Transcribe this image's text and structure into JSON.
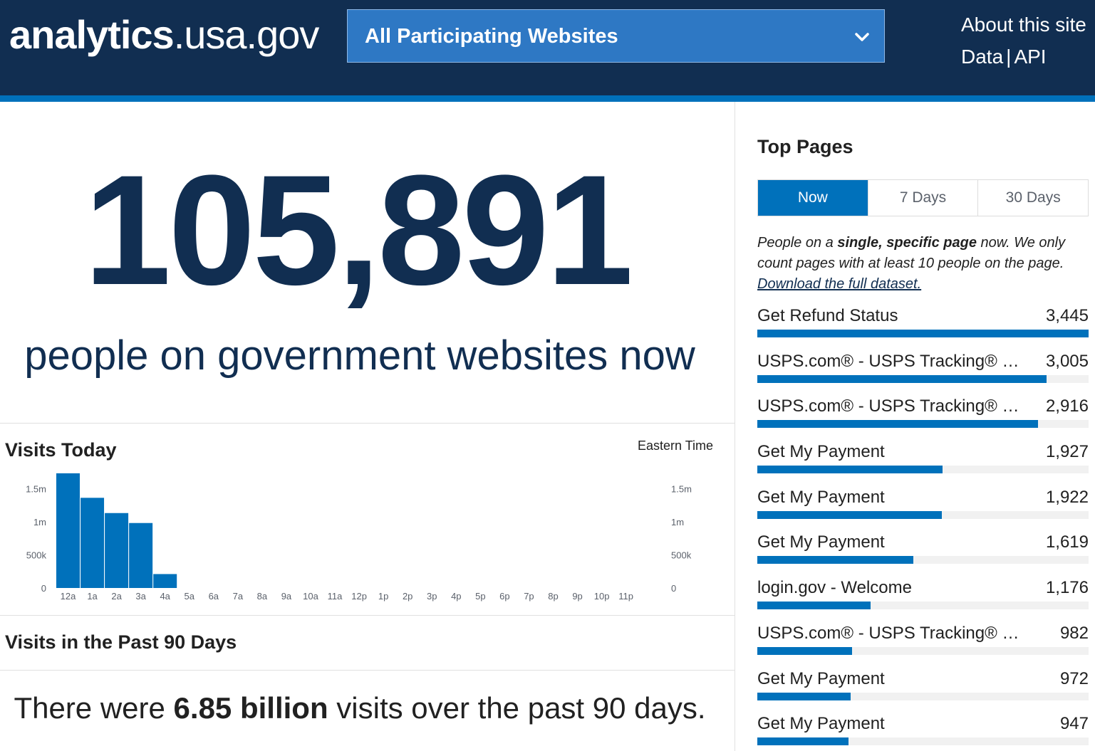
{
  "header": {
    "logo_bold": "analytics",
    "logo_light": ".usa.gov",
    "site_select": "All Participating Websites",
    "about_link": "About this site",
    "data_link": "Data",
    "separator": "|",
    "api_link": "API"
  },
  "realtime": {
    "count": "105,891",
    "subtitle": "people on government websites now"
  },
  "visits_today": {
    "title": "Visits Today",
    "timezone": "Eastern Time"
  },
  "past90": {
    "title": "Visits in the Past 90 Days",
    "prefix": "There were",
    "value": "6.85 billion",
    "suffix": "visits over the past 90 days."
  },
  "top_pages": {
    "title": "Top Pages",
    "tabs": [
      {
        "label": "Now",
        "active": true
      },
      {
        "label": "7 Days",
        "active": false
      },
      {
        "label": "30 Days",
        "active": false
      }
    ],
    "desc_1": "People on a ",
    "desc_bold": "single, specific page",
    "desc_2": " now. We only count pages with at least 10 people on the page. ",
    "desc_link": "Download the full dataset.",
    "items": [
      {
        "name": "Get Refund Status",
        "count": "3,445",
        "value": 3445
      },
      {
        "name": "USPS.com® - USPS Tracking® Results",
        "count": "3,005",
        "value": 3005
      },
      {
        "name": "USPS.com® - USPS Tracking® Results",
        "count": "2,916",
        "value": 2916
      },
      {
        "name": "Get My Payment",
        "count": "1,927",
        "value": 1927
      },
      {
        "name": "Get My Payment",
        "count": "1,922",
        "value": 1922
      },
      {
        "name": "Get My Payment",
        "count": "1,619",
        "value": 1619
      },
      {
        "name": "login.gov - Welcome",
        "count": "1,176",
        "value": 1176
      },
      {
        "name": "USPS.com® - USPS Tracking® Results",
        "count": "982",
        "value": 982
      },
      {
        "name": "Get My Payment",
        "count": "972",
        "value": 972
      },
      {
        "name": "Get My Payment",
        "count": "947",
        "value": 947
      }
    ]
  },
  "chart_data": {
    "type": "bar",
    "title": "Visits Today",
    "xlabel": "",
    "ylabel": "",
    "categories": [
      "12a",
      "1a",
      "2a",
      "3a",
      "4a",
      "5a",
      "6a",
      "7a",
      "8a",
      "9a",
      "10a",
      "11a",
      "12p",
      "1p",
      "2p",
      "3p",
      "4p",
      "5p",
      "6p",
      "7p",
      "8p",
      "9p",
      "10p",
      "11p"
    ],
    "values": [
      1730000,
      1360000,
      1130000,
      980000,
      210000,
      0,
      0,
      0,
      0,
      0,
      0,
      0,
      0,
      0,
      0,
      0,
      0,
      0,
      0,
      0,
      0,
      0,
      0,
      0
    ],
    "yticks": [
      {
        "value": 0,
        "label": "0"
      },
      {
        "value": 500000,
        "label": "500k"
      },
      {
        "value": 1000000,
        "label": "1m"
      },
      {
        "value": 1500000,
        "label": "1.5m"
      }
    ],
    "ylim": [
      0,
      1750000
    ],
    "bar_color": "#0071bb",
    "grid": false,
    "legend": "none"
  },
  "colors": {
    "navy": "#112e51",
    "blue": "#0071bb",
    "select_blue": "#2e78c4"
  }
}
